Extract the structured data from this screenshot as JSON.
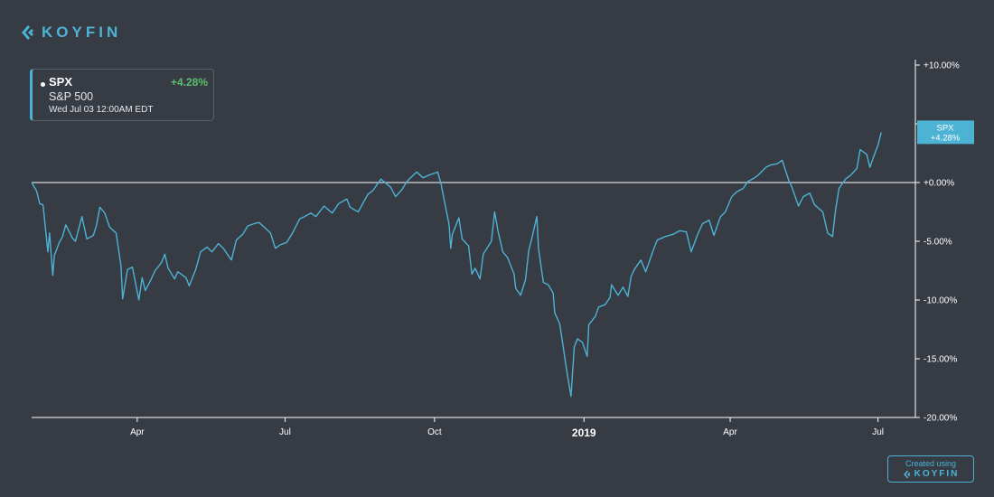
{
  "brand": {
    "logo_text": "KOYFIN",
    "credit_label": "Created using",
    "credit_logo": "KOYFIN"
  },
  "legend": {
    "ticker": "SPX",
    "name": "S&P 500",
    "change": "+4.28%",
    "datetime": "Wed Jul 03 12:00AM EDT"
  },
  "colors": {
    "background": "#363b44",
    "line": "#4cb3d4",
    "positive": "#5cbf6b",
    "accent": "#4cb3d4"
  },
  "chart_data": {
    "type": "line",
    "title": "",
    "xlabel": "",
    "ylabel": "",
    "y_unit": "%",
    "ylim": [
      -20,
      10
    ],
    "xlim": [
      "2018-01-26",
      "2019-07-24"
    ],
    "y_ticks": [
      10,
      5,
      0,
      -5,
      -10,
      -15,
      -20
    ],
    "y_tick_labels": [
      "+10.00%",
      "+5.00%",
      "+0.00%",
      "-5.00%",
      "-10.00%",
      "-15.00%",
      "-20.00%"
    ],
    "x_ticks": [
      {
        "date": "2018-04-01",
        "label": "Apr",
        "bold": false
      },
      {
        "date": "2018-07-01",
        "label": "Jul",
        "bold": false
      },
      {
        "date": "2018-10-01",
        "label": "Oct",
        "bold": false
      },
      {
        "date": "2019-01-01",
        "label": "2019",
        "bold": true
      },
      {
        "date": "2019-04-01",
        "label": "Apr",
        "bold": false
      },
      {
        "date": "2019-07-01",
        "label": "Jul",
        "bold": false
      }
    ],
    "reference_line": 0,
    "last_value_tag": {
      "label": "SPX",
      "value": "+4.28%",
      "y": 4.28
    },
    "series": [
      {
        "name": "SPX",
        "color": "#4cb3d4",
        "points": [
          [
            "2018-01-26",
            0.0
          ],
          [
            "2018-01-29",
            -0.7
          ],
          [
            "2018-01-31",
            -1.8
          ],
          [
            "2018-02-02",
            -1.9
          ],
          [
            "2018-02-05",
            -5.9
          ],
          [
            "2018-02-06",
            -4.3
          ],
          [
            "2018-02-08",
            -7.9
          ],
          [
            "2018-02-09",
            -6.2
          ],
          [
            "2018-02-12",
            -5.1
          ],
          [
            "2018-02-14",
            -4.6
          ],
          [
            "2018-02-16",
            -3.6
          ],
          [
            "2018-02-20",
            -4.7
          ],
          [
            "2018-02-22",
            -5.0
          ],
          [
            "2018-02-26",
            -2.9
          ],
          [
            "2018-03-01",
            -4.8
          ],
          [
            "2018-03-05",
            -4.5
          ],
          [
            "2018-03-07",
            -3.6
          ],
          [
            "2018-03-09",
            -2.1
          ],
          [
            "2018-03-12",
            -2.6
          ],
          [
            "2018-03-15",
            -3.8
          ],
          [
            "2018-03-19",
            -4.3
          ],
          [
            "2018-03-22",
            -7.1
          ],
          [
            "2018-03-23",
            -9.9
          ],
          [
            "2018-03-26",
            -7.4
          ],
          [
            "2018-03-29",
            -7.2
          ],
          [
            "2018-04-02",
            -10.0
          ],
          [
            "2018-04-04",
            -8.1
          ],
          [
            "2018-04-06",
            -9.2
          ],
          [
            "2018-04-09",
            -8.4
          ],
          [
            "2018-04-12",
            -7.5
          ],
          [
            "2018-04-16",
            -6.8
          ],
          [
            "2018-04-18",
            -6.1
          ],
          [
            "2018-04-20",
            -7.3
          ],
          [
            "2018-04-24",
            -8.2
          ],
          [
            "2018-04-26",
            -7.6
          ],
          [
            "2018-05-01",
            -8.1
          ],
          [
            "2018-05-03",
            -8.8
          ],
          [
            "2018-05-07",
            -7.4
          ],
          [
            "2018-05-10",
            -5.9
          ],
          [
            "2018-05-14",
            -5.5
          ],
          [
            "2018-05-17",
            -5.9
          ],
          [
            "2018-05-21",
            -5.2
          ],
          [
            "2018-05-24",
            -5.6
          ],
          [
            "2018-05-29",
            -6.6
          ],
          [
            "2018-06-01",
            -4.9
          ],
          [
            "2018-06-05",
            -4.4
          ],
          [
            "2018-06-08",
            -3.7
          ],
          [
            "2018-06-12",
            -3.5
          ],
          [
            "2018-06-15",
            -3.4
          ],
          [
            "2018-06-19",
            -3.9
          ],
          [
            "2018-06-22",
            -4.3
          ],
          [
            "2018-06-25",
            -5.6
          ],
          [
            "2018-06-28",
            -5.3
          ],
          [
            "2018-07-02",
            -5.1
          ],
          [
            "2018-07-06",
            -4.2
          ],
          [
            "2018-07-10",
            -3.1
          ],
          [
            "2018-07-13",
            -2.9
          ],
          [
            "2018-07-17",
            -2.6
          ],
          [
            "2018-07-20",
            -2.9
          ],
          [
            "2018-07-25",
            -2.0
          ],
          [
            "2018-07-30",
            -2.6
          ],
          [
            "2018-08-03",
            -1.8
          ],
          [
            "2018-08-08",
            -1.4
          ],
          [
            "2018-08-10",
            -2.1
          ],
          [
            "2018-08-15",
            -2.5
          ],
          [
            "2018-08-21",
            -1.0
          ],
          [
            "2018-08-24",
            -0.7
          ],
          [
            "2018-08-29",
            0.3
          ],
          [
            "2018-09-04",
            -0.4
          ],
          [
            "2018-09-07",
            -1.2
          ],
          [
            "2018-09-11",
            -0.6
          ],
          [
            "2018-09-14",
            0.1
          ],
          [
            "2018-09-20",
            0.9
          ],
          [
            "2018-09-24",
            0.4
          ],
          [
            "2018-09-27",
            0.6
          ],
          [
            "2018-10-01",
            0.8
          ],
          [
            "2018-10-03",
            0.9
          ],
          [
            "2018-10-05",
            -0.1
          ],
          [
            "2018-10-10",
            -3.6
          ],
          [
            "2018-10-11",
            -5.6
          ],
          [
            "2018-10-12",
            -4.4
          ],
          [
            "2018-10-16",
            -3.0
          ],
          [
            "2018-10-18",
            -4.8
          ],
          [
            "2018-10-22",
            -5.4
          ],
          [
            "2018-10-24",
            -7.8
          ],
          [
            "2018-10-26",
            -7.3
          ],
          [
            "2018-10-29",
            -8.2
          ],
          [
            "2018-10-31",
            -6.1
          ],
          [
            "2018-11-05",
            -5.0
          ],
          [
            "2018-11-07",
            -2.5
          ],
          [
            "2018-11-09",
            -4.1
          ],
          [
            "2018-11-12",
            -5.9
          ],
          [
            "2018-11-15",
            -6.4
          ],
          [
            "2018-11-19",
            -7.8
          ],
          [
            "2018-11-20",
            -9.0
          ],
          [
            "2018-11-23",
            -9.6
          ],
          [
            "2018-11-26",
            -8.3
          ],
          [
            "2018-11-28",
            -5.8
          ],
          [
            "2018-11-30",
            -4.7
          ],
          [
            "2018-12-03",
            -2.9
          ],
          [
            "2018-12-04",
            -5.6
          ],
          [
            "2018-12-07",
            -8.5
          ],
          [
            "2018-12-10",
            -8.7
          ],
          [
            "2018-12-13",
            -9.4
          ],
          [
            "2018-12-14",
            -11.1
          ],
          [
            "2018-12-17",
            -12.0
          ],
          [
            "2018-12-19",
            -13.8
          ],
          [
            "2018-12-21",
            -15.7
          ],
          [
            "2018-12-24",
            -18.2
          ],
          [
            "2018-12-26",
            -14.0
          ],
          [
            "2018-12-28",
            -13.3
          ],
          [
            "2018-12-31",
            -13.6
          ],
          [
            "2019-01-03",
            -14.8
          ],
          [
            "2019-01-04",
            -12.1
          ],
          [
            "2019-01-08",
            -11.4
          ],
          [
            "2019-01-10",
            -10.6
          ],
          [
            "2019-01-14",
            -10.4
          ],
          [
            "2019-01-17",
            -9.8
          ],
          [
            "2019-01-18",
            -8.7
          ],
          [
            "2019-01-22",
            -9.6
          ],
          [
            "2019-01-25",
            -8.9
          ],
          [
            "2019-01-28",
            -9.7
          ],
          [
            "2019-01-30",
            -8.0
          ],
          [
            "2019-02-01",
            -7.4
          ],
          [
            "2019-02-05",
            -6.6
          ],
          [
            "2019-02-08",
            -7.6
          ],
          [
            "2019-02-12",
            -6.0
          ],
          [
            "2019-02-15",
            -4.9
          ],
          [
            "2019-02-20",
            -4.6
          ],
          [
            "2019-02-25",
            -4.4
          ],
          [
            "2019-03-01",
            -4.1
          ],
          [
            "2019-03-05",
            -4.2
          ],
          [
            "2019-03-08",
            -5.9
          ],
          [
            "2019-03-12",
            -4.4
          ],
          [
            "2019-03-15",
            -3.5
          ],
          [
            "2019-03-19",
            -3.2
          ],
          [
            "2019-03-22",
            -4.5
          ],
          [
            "2019-03-26",
            -2.9
          ],
          [
            "2019-03-29",
            -2.5
          ],
          [
            "2019-04-02",
            -1.2
          ],
          [
            "2019-04-05",
            -0.8
          ],
          [
            "2019-04-09",
            -0.5
          ],
          [
            "2019-04-12",
            0.1
          ],
          [
            "2019-04-16",
            0.4
          ],
          [
            "2019-04-18",
            0.6
          ],
          [
            "2019-04-23",
            1.3
          ],
          [
            "2019-04-26",
            1.5
          ],
          [
            "2019-04-30",
            1.6
          ],
          [
            "2019-05-03",
            1.9
          ],
          [
            "2019-05-07",
            0.2
          ],
          [
            "2019-05-09",
            -0.4
          ],
          [
            "2019-05-13",
            -2.0
          ],
          [
            "2019-05-16",
            -1.2
          ],
          [
            "2019-05-20",
            -0.9
          ],
          [
            "2019-05-23",
            -1.9
          ],
          [
            "2019-05-28",
            -2.5
          ],
          [
            "2019-05-31",
            -4.3
          ],
          [
            "2019-06-03",
            -4.6
          ],
          [
            "2019-06-05",
            -2.2
          ],
          [
            "2019-06-07",
            -0.5
          ],
          [
            "2019-06-11",
            0.3
          ],
          [
            "2019-06-14",
            0.6
          ],
          [
            "2019-06-18",
            1.2
          ],
          [
            "2019-06-20",
            2.8
          ],
          [
            "2019-06-24",
            2.4
          ],
          [
            "2019-06-26",
            1.3
          ],
          [
            "2019-06-28",
            2.1
          ],
          [
            "2019-07-01",
            3.2
          ],
          [
            "2019-07-03",
            4.28
          ]
        ]
      }
    ]
  }
}
